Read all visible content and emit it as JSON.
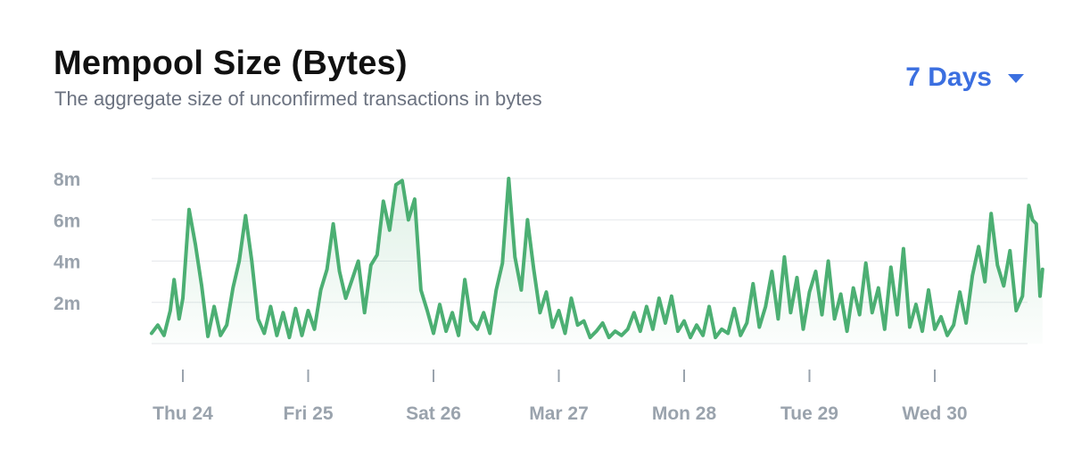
{
  "header": {
    "title": "Mempool Size (Bytes)",
    "subtitle": "The aggregate size of unconfirmed transactions in bytes"
  },
  "range_selector": {
    "label": "7 Days",
    "icon": "caret-down-icon"
  },
  "colors": {
    "line": "#4caf73",
    "accent": "#3b6fe0",
    "grid": "#e5e7eb",
    "tick_text": "#9aa3ad"
  },
  "chart_data": {
    "type": "area",
    "title": "Mempool Size (Bytes)",
    "xlabel": "",
    "ylabel": "",
    "x_ticks": [
      "Thu 24",
      "Fri 25",
      "Sat 26",
      "Mar 27",
      "Mon 28",
      "Tue 29",
      "Wed 30"
    ],
    "y_ticks": [
      {
        "label": "2m",
        "value": 2000000
      },
      {
        "label": "4m",
        "value": 4000000
      },
      {
        "label": "6m",
        "value": 6000000
      },
      {
        "label": "8m",
        "value": 8000000
      }
    ],
    "ylim": [
      0,
      8000000
    ],
    "xlim_days": [
      -0.25,
      6.75
    ],
    "grid": true,
    "series": [
      {
        "points_days_vs_bytes": [
          [
            -0.25,
            500000
          ],
          [
            -0.2,
            900000
          ],
          [
            -0.15,
            400000
          ],
          [
            -0.1,
            1600000
          ],
          [
            -0.07,
            3100000
          ],
          [
            -0.03,
            1200000
          ],
          [
            0.0,
            2200000
          ],
          [
            0.05,
            6500000
          ],
          [
            0.1,
            4800000
          ],
          [
            0.15,
            2800000
          ],
          [
            0.2,
            350000
          ],
          [
            0.25,
            1800000
          ],
          [
            0.3,
            400000
          ],
          [
            0.35,
            900000
          ],
          [
            0.4,
            2700000
          ],
          [
            0.45,
            4000000
          ],
          [
            0.5,
            6200000
          ],
          [
            0.55,
            4000000
          ],
          [
            0.6,
            1200000
          ],
          [
            0.65,
            500000
          ],
          [
            0.7,
            1800000
          ],
          [
            0.75,
            400000
          ],
          [
            0.8,
            1500000
          ],
          [
            0.85,
            300000
          ],
          [
            0.9,
            1700000
          ],
          [
            0.95,
            400000
          ],
          [
            1.0,
            1600000
          ],
          [
            1.05,
            700000
          ],
          [
            1.1,
            2600000
          ],
          [
            1.15,
            3600000
          ],
          [
            1.2,
            5800000
          ],
          [
            1.25,
            3500000
          ],
          [
            1.3,
            2200000
          ],
          [
            1.35,
            3100000
          ],
          [
            1.4,
            4000000
          ],
          [
            1.45,
            1500000
          ],
          [
            1.5,
            3800000
          ],
          [
            1.55,
            4300000
          ],
          [
            1.6,
            6900000
          ],
          [
            1.65,
            5500000
          ],
          [
            1.7,
            7700000
          ],
          [
            1.75,
            7900000
          ],
          [
            1.8,
            6000000
          ],
          [
            1.85,
            7000000
          ],
          [
            1.9,
            2600000
          ],
          [
            1.95,
            1600000
          ],
          [
            2.0,
            500000
          ],
          [
            2.05,
            1900000
          ],
          [
            2.1,
            600000
          ],
          [
            2.15,
            1500000
          ],
          [
            2.2,
            400000
          ],
          [
            2.25,
            3100000
          ],
          [
            2.3,
            1100000
          ],
          [
            2.35,
            700000
          ],
          [
            2.4,
            1500000
          ],
          [
            2.45,
            500000
          ],
          [
            2.5,
            2600000
          ],
          [
            2.55,
            3900000
          ],
          [
            2.6,
            8000000
          ],
          [
            2.65,
            4200000
          ],
          [
            2.7,
            2600000
          ],
          [
            2.75,
            6000000
          ],
          [
            2.8,
            3600000
          ],
          [
            2.85,
            1500000
          ],
          [
            2.9,
            2500000
          ],
          [
            2.95,
            800000
          ],
          [
            3.0,
            1600000
          ],
          [
            3.05,
            500000
          ],
          [
            3.1,
            2200000
          ],
          [
            3.15,
            900000
          ],
          [
            3.2,
            1100000
          ],
          [
            3.25,
            300000
          ],
          [
            3.3,
            600000
          ],
          [
            3.35,
            1000000
          ],
          [
            3.4,
            300000
          ],
          [
            3.45,
            600000
          ],
          [
            3.5,
            400000
          ],
          [
            3.55,
            700000
          ],
          [
            3.6,
            1500000
          ],
          [
            3.65,
            600000
          ],
          [
            3.7,
            1800000
          ],
          [
            3.75,
            700000
          ],
          [
            3.8,
            2200000
          ],
          [
            3.85,
            1000000
          ],
          [
            3.9,
            2300000
          ],
          [
            3.95,
            600000
          ],
          [
            4.0,
            1100000
          ],
          [
            4.05,
            300000
          ],
          [
            4.1,
            900000
          ],
          [
            4.15,
            400000
          ],
          [
            4.2,
            1800000
          ],
          [
            4.25,
            300000
          ],
          [
            4.3,
            700000
          ],
          [
            4.35,
            500000
          ],
          [
            4.4,
            1700000
          ],
          [
            4.45,
            400000
          ],
          [
            4.5,
            1000000
          ],
          [
            4.55,
            2900000
          ],
          [
            4.6,
            800000
          ],
          [
            4.65,
            1800000
          ],
          [
            4.7,
            3500000
          ],
          [
            4.75,
            1200000
          ],
          [
            4.8,
            4200000
          ],
          [
            4.85,
            1500000
          ],
          [
            4.9,
            3200000
          ],
          [
            4.95,
            700000
          ],
          [
            5.0,
            2500000
          ],
          [
            5.05,
            3500000
          ],
          [
            5.1,
            1400000
          ],
          [
            5.15,
            4000000
          ],
          [
            5.2,
            1200000
          ],
          [
            5.25,
            2400000
          ],
          [
            5.3,
            600000
          ],
          [
            5.35,
            2700000
          ],
          [
            5.4,
            1400000
          ],
          [
            5.45,
            3900000
          ],
          [
            5.5,
            1500000
          ],
          [
            5.55,
            2700000
          ],
          [
            5.6,
            700000
          ],
          [
            5.65,
            3700000
          ],
          [
            5.7,
            1400000
          ],
          [
            5.75,
            4600000
          ],
          [
            5.8,
            800000
          ],
          [
            5.85,
            1900000
          ],
          [
            5.9,
            600000
          ],
          [
            5.95,
            2600000
          ],
          [
            6.0,
            700000
          ],
          [
            6.05,
            1300000
          ],
          [
            6.1,
            400000
          ],
          [
            6.15,
            900000
          ],
          [
            6.2,
            2500000
          ],
          [
            6.25,
            1000000
          ],
          [
            6.3,
            3300000
          ],
          [
            6.35,
            4700000
          ],
          [
            6.4,
            3000000
          ],
          [
            6.45,
            6300000
          ],
          [
            6.5,
            3800000
          ],
          [
            6.55,
            2800000
          ],
          [
            6.6,
            4500000
          ],
          [
            6.65,
            1600000
          ],
          [
            6.7,
            2300000
          ],
          [
            6.75,
            6700000
          ],
          [
            6.78,
            6000000
          ],
          [
            6.81,
            5800000
          ],
          [
            6.84,
            2300000
          ],
          [
            6.86,
            3600000
          ]
        ]
      }
    ]
  }
}
